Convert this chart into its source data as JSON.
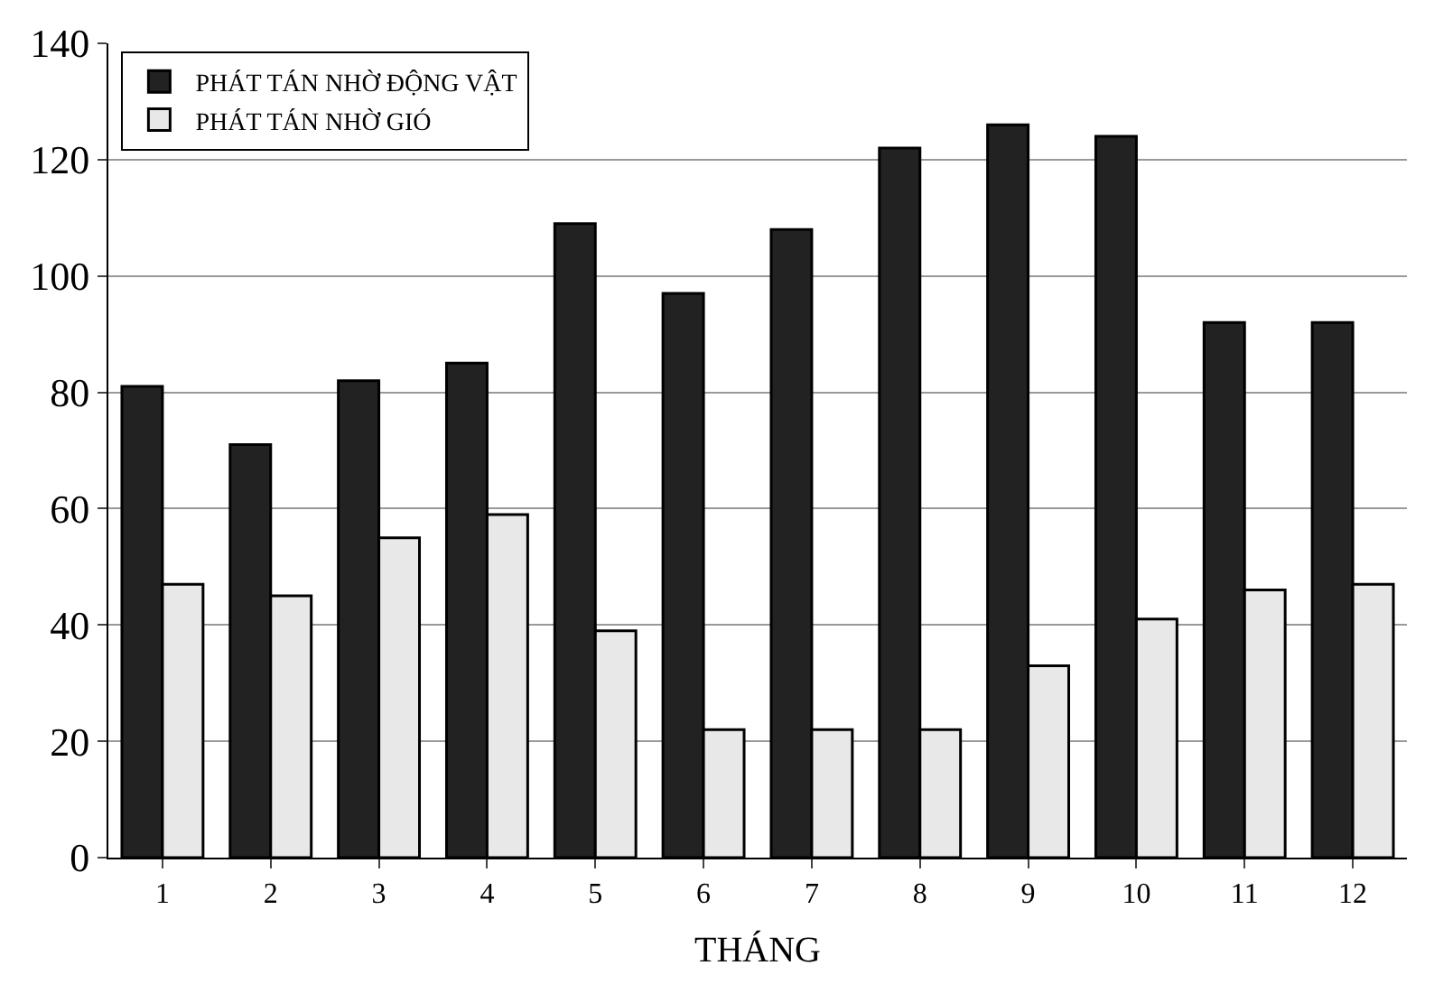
{
  "chart_data": {
    "type": "bar",
    "xlabel": "THÁNG",
    "x": [
      1,
      2,
      3,
      4,
      5,
      6,
      7,
      8,
      9,
      10,
      11,
      12
    ],
    "series": [
      {
        "name": "PHÁT TÁN NHỜ ĐỘNG VẬT",
        "color": "#222222",
        "values": [
          81,
          71,
          82,
          85,
          109,
          97,
          108,
          122,
          126,
          124,
          92,
          92
        ]
      },
      {
        "name": "PHÁT TÁN NHỜ GIÓ",
        "color": "#e8e8e8",
        "values": [
          47,
          45,
          55,
          59,
          39,
          22,
          22,
          22,
          33,
          41,
          46,
          47
        ]
      }
    ],
    "xlim": [
      0.5,
      12.5
    ],
    "xticks": [
      1,
      2,
      3,
      4,
      5,
      6,
      7,
      8,
      9,
      10,
      11,
      12
    ],
    "ylim": [
      0,
      140
    ],
    "yticks": [
      0,
      20,
      40,
      60,
      80,
      100,
      120,
      140
    ],
    "grid": "y",
    "legend": "top left"
  }
}
